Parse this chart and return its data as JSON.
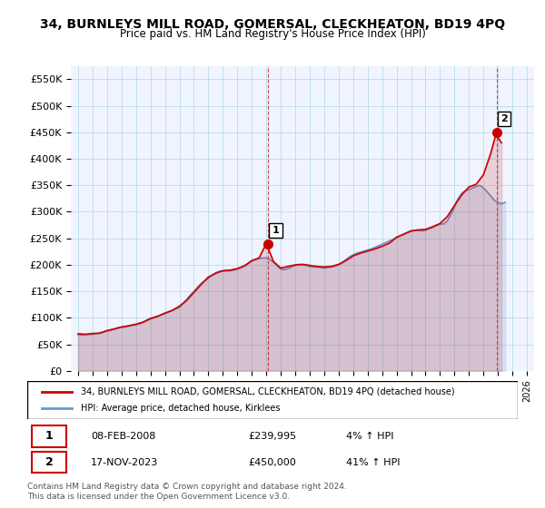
{
  "title": "34, BURNLEYS MILL ROAD, GOMERSAL, CLECKHEATON, BD19 4PQ",
  "subtitle": "Price paid vs. HM Land Registry's House Price Index (HPI)",
  "ylabel_ticks": [
    "£0",
    "£50K",
    "£100K",
    "£150K",
    "£200K",
    "£250K",
    "£300K",
    "£350K",
    "£400K",
    "£450K",
    "£500K",
    "£550K"
  ],
  "ytick_values": [
    0,
    50000,
    100000,
    150000,
    200000,
    250000,
    300000,
    350000,
    400000,
    450000,
    500000,
    550000
  ],
  "x_start_year": 1995,
  "x_end_year": 2026,
  "hpi_color": "#6699cc",
  "price_color": "#cc0000",
  "transaction1": {
    "date": "08-FEB-2008",
    "price": 239995,
    "label": "1",
    "year": 2008.1
  },
  "transaction2": {
    "date": "17-NOV-2023",
    "price": 450000,
    "label": "2",
    "year": 2023.9
  },
  "legend_line1": "34, BURNLEYS MILL ROAD, GOMERSAL, CLECKHEATON, BD19 4PQ (detached house)",
  "legend_line2": "HPI: Average price, detached house, Kirklees",
  "footer1": "Contains HM Land Registry data © Crown copyright and database right 2024.",
  "footer2": "This data is licensed under the Open Government Licence v3.0.",
  "hpi_data_x": [
    1995,
    1995.25,
    1995.5,
    1995.75,
    1996,
    1996.25,
    1996.5,
    1996.75,
    1997,
    1997.25,
    1997.5,
    1997.75,
    1998,
    1998.25,
    1998.5,
    1998.75,
    1999,
    1999.25,
    1999.5,
    1999.75,
    2000,
    2000.25,
    2000.5,
    2000.75,
    2001,
    2001.25,
    2001.5,
    2001.75,
    2002,
    2002.25,
    2002.5,
    2002.75,
    2003,
    2003.25,
    2003.5,
    2003.75,
    2004,
    2004.25,
    2004.5,
    2004.75,
    2005,
    2005.25,
    2005.5,
    2005.75,
    2006,
    2006.25,
    2006.5,
    2006.75,
    2007,
    2007.25,
    2007.5,
    2007.75,
    2008,
    2008.25,
    2008.5,
    2008.75,
    2009,
    2009.25,
    2009.5,
    2009.75,
    2010,
    2010.25,
    2010.5,
    2010.75,
    2011,
    2011.25,
    2011.5,
    2011.75,
    2012,
    2012.25,
    2012.5,
    2012.75,
    2013,
    2013.25,
    2013.5,
    2013.75,
    2014,
    2014.25,
    2014.5,
    2014.75,
    2015,
    2015.25,
    2015.5,
    2015.75,
    2016,
    2016.25,
    2016.5,
    2016.75,
    2017,
    2017.25,
    2017.5,
    2017.75,
    2018,
    2018.25,
    2018.5,
    2018.75,
    2019,
    2019.25,
    2019.5,
    2019.75,
    2020,
    2020.25,
    2020.5,
    2020.75,
    2021,
    2021.25,
    2021.5,
    2021.75,
    2022,
    2022.25,
    2022.5,
    2022.75,
    2023,
    2023.25,
    2023.5,
    2023.75,
    2024,
    2024.25,
    2024.5
  ],
  "hpi_data_y": [
    68000,
    67500,
    68000,
    68500,
    69000,
    70000,
    72000,
    73500,
    75000,
    77000,
    79000,
    81000,
    82000,
    83000,
    84500,
    86000,
    87000,
    89000,
    92000,
    95000,
    98000,
    100000,
    103000,
    106000,
    108000,
    111000,
    114000,
    117000,
    120000,
    127000,
    135000,
    143000,
    150000,
    158000,
    165000,
    170000,
    175000,
    180000,
    185000,
    188000,
    188000,
    188500,
    189000,
    190000,
    192000,
    195000,
    199000,
    203000,
    207000,
    210000,
    212000,
    213000,
    213000,
    210000,
    205000,
    198000,
    192000,
    191000,
    193000,
    196000,
    199000,
    200000,
    200000,
    199000,
    197000,
    196000,
    196000,
    195000,
    194000,
    195000,
    196000,
    198000,
    200000,
    204000,
    210000,
    215000,
    219000,
    222000,
    224000,
    226000,
    228000,
    230000,
    233000,
    236000,
    239000,
    242000,
    245000,
    248000,
    252000,
    255000,
    258000,
    261000,
    264000,
    265000,
    265000,
    264000,
    265000,
    268000,
    271000,
    274000,
    277000,
    277000,
    283000,
    295000,
    310000,
    325000,
    335000,
    340000,
    342000,
    345000,
    348000,
    350000,
    345000,
    338000,
    330000,
    322000,
    318000,
    315000,
    318000
  ],
  "price_data_x": [
    1995,
    1995.5,
    1996,
    1996.5,
    1997,
    1997.5,
    1998,
    1998.5,
    1999,
    1999.5,
    2000,
    2000.5,
    2001,
    2001.5,
    2002,
    2002.5,
    2003,
    2003.5,
    2004,
    2004.5,
    2005,
    2005.5,
    2006,
    2006.5,
    2007,
    2007.5,
    2008,
    2008.5,
    2009,
    2009.5,
    2010,
    2010.5,
    2011,
    2011.5,
    2012,
    2012.5,
    2013,
    2013.5,
    2014,
    2014.5,
    2015,
    2015.5,
    2016,
    2016.5,
    2017,
    2017.5,
    2018,
    2018.5,
    2019,
    2019.5,
    2020,
    2020.5,
    2021,
    2021.5,
    2022,
    2022.5,
    2023,
    2023.5,
    2023.9,
    2024,
    2024.25
  ],
  "price_data_y": [
    70000,
    69000,
    70500,
    71000,
    76000,
    79000,
    83000,
    85000,
    88000,
    92000,
    99000,
    103000,
    109000,
    114000,
    122000,
    133000,
    148000,
    163000,
    177000,
    184000,
    189000,
    190000,
    193000,
    198000,
    208000,
    213000,
    240000,
    206000,
    194000,
    197000,
    200000,
    201000,
    199000,
    197000,
    196000,
    197000,
    201000,
    208000,
    217000,
    222000,
    226000,
    230000,
    235000,
    241000,
    252000,
    258000,
    264000,
    266000,
    267000,
    272000,
    278000,
    291000,
    312000,
    332000,
    347000,
    352000,
    370000,
    410000,
    450000,
    440000,
    430000
  ]
}
